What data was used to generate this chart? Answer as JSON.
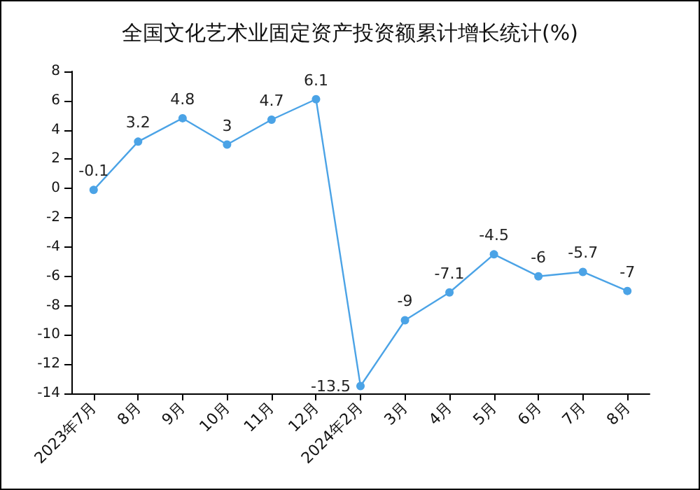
{
  "chart_data": {
    "type": "line",
    "title": "全国文化艺术业固定资产投资额累计增长统计(%)",
    "categories": [
      "2023年7月",
      "8月",
      "9月",
      "10月",
      "11月",
      "12月",
      "2024年2月",
      "3月",
      "4月",
      "5月",
      "6月",
      "7月",
      "8月"
    ],
    "series": [
      {
        "color": "#4ba3e6",
        "values": [
          -0.1,
          3.2,
          4.8,
          3,
          4.7,
          6.1,
          -13.5,
          -9,
          -7.1,
          -4.5,
          -6,
          -5.7,
          -7
        ]
      }
    ],
    "ylim": [
      -14,
      8
    ],
    "yticks": [
      -14,
      -12,
      -10,
      -8,
      -6,
      -4,
      -2,
      0,
      2,
      4,
      6,
      8
    ],
    "grid": false,
    "marker": "circle",
    "line_style": "solid",
    "data_labels": true
  }
}
